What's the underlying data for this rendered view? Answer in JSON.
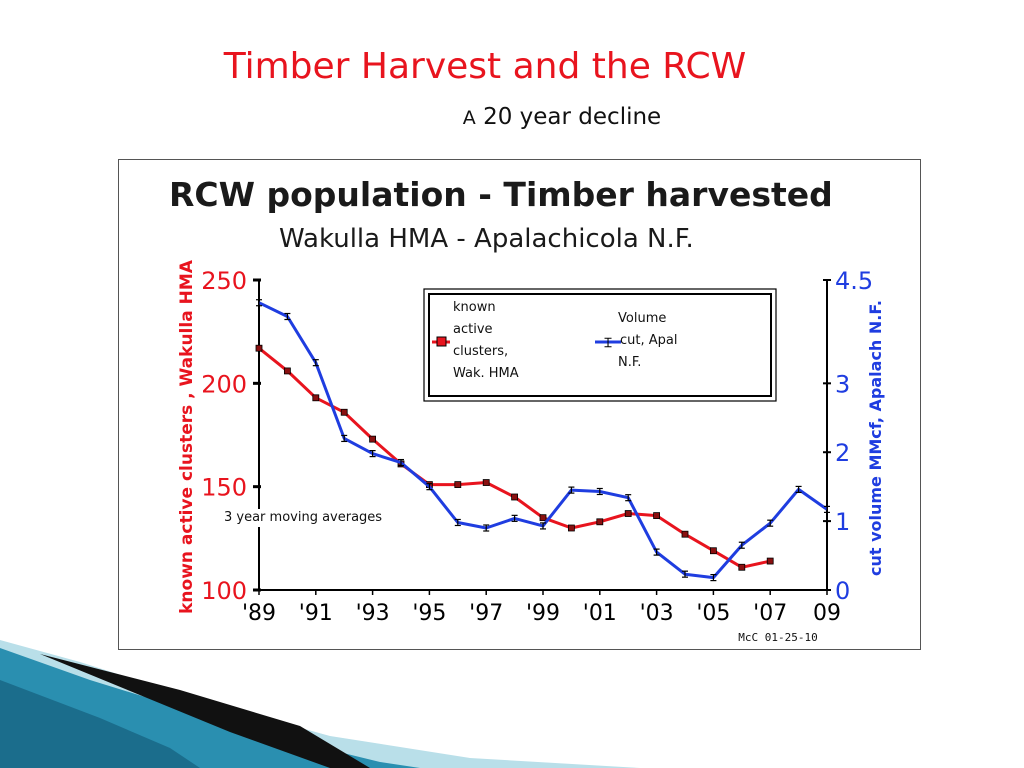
{
  "slide": {
    "title": "Timber Harvest and the RCW",
    "subtitle_cap": "A",
    "subtitle": " 20 year decline",
    "note": "3 year moving averages",
    "credit": "McC  01-25-10"
  },
  "chart_data": {
    "type": "line",
    "title": "RCW population  - Timber harvested",
    "subtitle": "Wakulla HMA - Apalachicola N.F.",
    "ylabel_left": "known active clusters , Wakulla HMA",
    "ylabel_right": "cut  volume MMcf, Apalach N.F.",
    "x_ticks": [
      "'89",
      "'91",
      "'93",
      "'95",
      "'97",
      "'99",
      "'01",
      "'03",
      "'05",
      "'07",
      "09"
    ],
    "y_left_ticks": [
      "250",
      "200",
      "150",
      "100"
    ],
    "y_right_ticks": [
      "4.5",
      "3",
      "2",
      "1",
      "0"
    ],
    "ylim_left": [
      100,
      250
    ],
    "ylim_right": [
      0,
      4.5
    ],
    "xlim": [
      1989,
      2009
    ],
    "legend": {
      "placement": "top-center",
      "entries": [
        "known active clusters, Wak. HMA",
        "Volume cut, Apal N.F."
      ]
    },
    "grid": false,
    "series": [
      {
        "name": "known active clusters, Wak. HMA",
        "axis": "left",
        "color": "#e8141e",
        "marker": "square",
        "x": [
          1989,
          1990,
          1991,
          1992,
          1993,
          1994,
          1995,
          1996,
          1997,
          1998,
          1999,
          2000,
          2001,
          2002,
          2003,
          2004,
          2005,
          2006,
          2007
        ],
        "y": [
          217,
          206,
          193,
          186,
          173,
          161,
          151,
          151,
          152,
          145,
          135,
          130,
          133,
          137,
          136,
          127,
          119,
          111,
          114
        ]
      },
      {
        "name": "Volume cut, Apal N.F.",
        "axis": "right",
        "color": "#1f3de0",
        "marker": "x",
        "x": [
          1989,
          1990,
          1991,
          1992,
          1993,
          1994,
          1995,
          1996,
          1997,
          1998,
          1999,
          2000,
          2001,
          2002,
          2003,
          2004,
          2005,
          2006,
          2007,
          2008,
          2009
        ],
        "y": [
          4.17,
          3.97,
          3.3,
          2.2,
          1.98,
          1.85,
          1.5,
          0.98,
          0.9,
          1.04,
          0.93,
          1.45,
          1.43,
          1.34,
          0.55,
          0.23,
          0.18,
          0.65,
          0.97,
          1.46,
          1.17
        ]
      }
    ]
  }
}
